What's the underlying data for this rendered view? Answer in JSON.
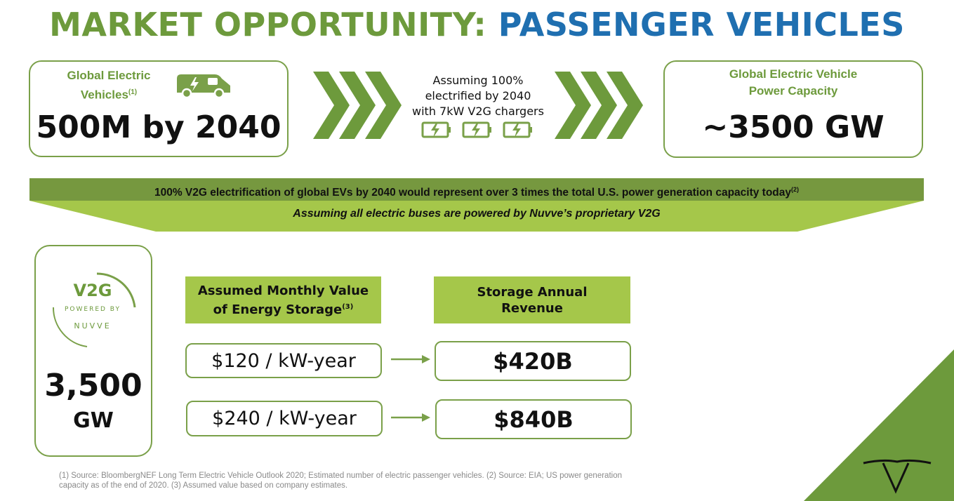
{
  "title": {
    "part1": "MARKET OPPORTUNITY:",
    "part2": "PASSENGER VEHICLES"
  },
  "left_card": {
    "label_line1": "Global Electric",
    "label_line2": "Vehicles",
    "label_ref": "(1)",
    "value": "500M by 2040",
    "icon": "electric-van-icon"
  },
  "middle": {
    "line1": "Assuming 100%",
    "line2": "electrified by 2040",
    "line3": "with 7kW V2G chargers",
    "icon": "battery-charging-icon"
  },
  "right_card": {
    "label_line1": "Global Electric Vehicle",
    "label_line2": "Power Capacity",
    "value": "~3500 GW"
  },
  "banner": {
    "top_text": "100% V2G electrification of global EVs by 2040 would represent over 3 times the total U.S. power generation capacity today",
    "top_ref": "(2)",
    "bottom_text": "Assuming all electric buses are powered by Nuvve’s proprietary V2G"
  },
  "v2g_card": {
    "logo_main": "V2G",
    "logo_sub": "POWERED BY",
    "logo_brand": "NUVVE",
    "value_number": "3,500",
    "value_unit": "GW"
  },
  "table": {
    "header_left_line1": "Assumed Monthly Value",
    "header_left_line2": "of Energy Storage",
    "header_left_ref": "(3)",
    "header_right_line1": "Storage Annual",
    "header_right_line2": "Revenue",
    "rows": [
      {
        "rate": "$120 / kW-year",
        "revenue": "$420B"
      },
      {
        "rate": "$240 / kW-year",
        "revenue": "$840B"
      }
    ]
  },
  "footnote": {
    "line1": "(1) Source: BloombergNEF Long Term Electric Vehicle Outlook 2020; Estimated number of electric passenger vehicles. (2) Source: EIA; US power generation",
    "line2": "capacity as of the end of 2020. (3) Assumed value based on company estimates."
  },
  "colors": {
    "green": "#6d9a3c",
    "blue": "#1f6fb0",
    "lime": "#a5c74a",
    "dark_green": "#76983f"
  }
}
